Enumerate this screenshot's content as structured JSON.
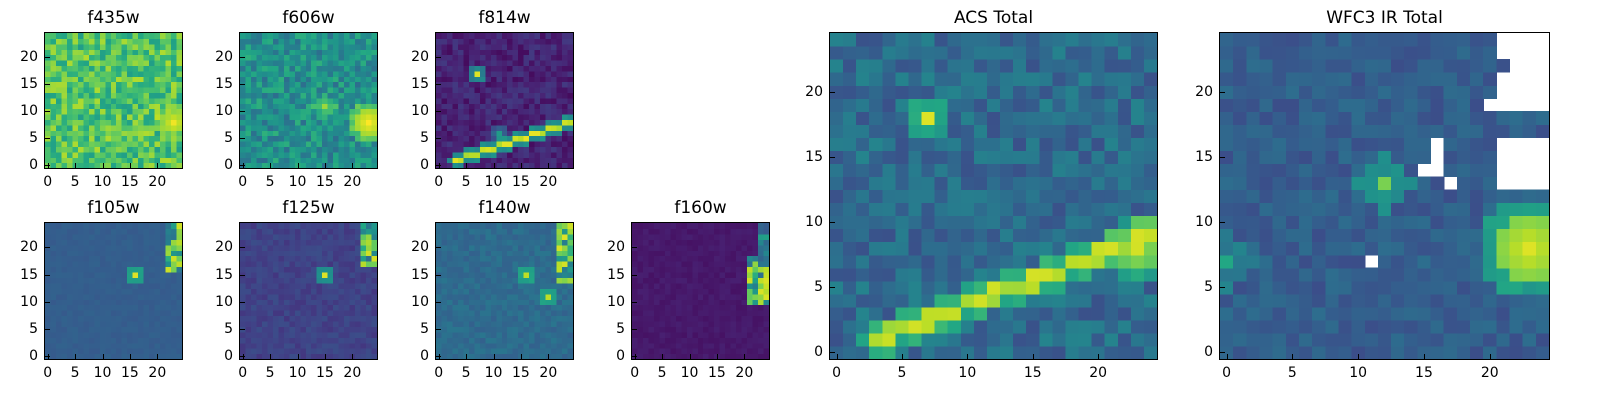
{
  "colors": {
    "colormap": "viridis",
    "background": "#ffffff",
    "frame": "#000000"
  },
  "chart_data": [
    {
      "type": "heatmap",
      "id": "f435w",
      "title": "f435w",
      "xlim": [
        0,
        24
      ],
      "ylim": [
        0,
        24
      ],
      "xticks": [
        0,
        5,
        10,
        15,
        20
      ],
      "yticks": [
        0,
        5,
        10,
        15,
        20
      ],
      "grid": false,
      "description_levels": "mostly bright green-yellow noise (0.6-0.95)",
      "base_level": 0.72,
      "noise": 0.16,
      "features": [
        {
          "type": "blob",
          "x": 23,
          "y": 8,
          "value": 0.98,
          "radius": 2
        }
      ]
    },
    {
      "type": "heatmap",
      "id": "f606w",
      "title": "f606w",
      "xlim": [
        0,
        24
      ],
      "ylim": [
        0,
        24
      ],
      "xticks": [
        0,
        5,
        10,
        15,
        20
      ],
      "yticks": [
        0,
        5,
        10,
        15,
        20
      ],
      "grid": false,
      "base_level": 0.5,
      "noise": 0.14,
      "features": [
        {
          "type": "blob",
          "x": 23,
          "y": 8,
          "value": 1.0,
          "radius": 2.5
        },
        {
          "type": "blob",
          "x": 15,
          "y": 11,
          "value": 0.85,
          "radius": 1
        }
      ]
    },
    {
      "type": "heatmap",
      "id": "f814w",
      "title": "f814w",
      "xlim": [
        0,
        24
      ],
      "ylim": [
        0,
        24
      ],
      "xticks": [
        0,
        5,
        10,
        15,
        20
      ],
      "yticks": [
        0,
        5,
        10,
        15,
        20
      ],
      "grid": false,
      "base_level": 0.1,
      "noise": 0.07,
      "features": [
        {
          "type": "streak",
          "x0": 3,
          "y0": 1,
          "x1": 24,
          "y1": 8,
          "value": 0.97
        },
        {
          "type": "blob",
          "x": 7,
          "y": 17,
          "value": 0.95,
          "radius": 0.7
        },
        {
          "type": "blob",
          "x": 11,
          "y": 6,
          "value": 0.55,
          "radius": 0.5
        }
      ]
    },
    {
      "type": "heatmap",
      "id": "f105w",
      "title": "f105w",
      "xlim": [
        0,
        24
      ],
      "ylim": [
        0,
        24
      ],
      "xticks": [
        0,
        5,
        10,
        15,
        20
      ],
      "yticks": [
        0,
        5,
        10,
        15,
        20
      ],
      "grid": false,
      "base_level": 0.3,
      "noise": 0.015,
      "features": [
        {
          "type": "edge-bright",
          "x": 22,
          "ymin": 16,
          "ymax": 24,
          "value": 0.95
        },
        {
          "type": "blob",
          "x": 16,
          "y": 15,
          "value": 0.95,
          "radius": 0.5
        },
        {
          "type": "blob",
          "x": 17,
          "y": 12,
          "value": 0.05,
          "radius": 0.5
        },
        {
          "type": "blob",
          "x": 20,
          "y": 12,
          "value": 0.05,
          "radius": 0.5
        }
      ]
    },
    {
      "type": "heatmap",
      "id": "f125w",
      "title": "f125w",
      "xlim": [
        0,
        24
      ],
      "ylim": [
        0,
        24
      ],
      "xticks": [
        0,
        5,
        10,
        15,
        20
      ],
      "yticks": [
        0,
        5,
        10,
        15,
        20
      ],
      "grid": false,
      "base_level": 0.2,
      "noise": 0.04,
      "features": [
        {
          "type": "edge-bright",
          "x": 22,
          "ymin": 17,
          "ymax": 24,
          "value": 0.95
        },
        {
          "type": "blob",
          "x": 15,
          "y": 15,
          "value": 0.95,
          "radius": 0.5
        },
        {
          "type": "blob",
          "x": 17,
          "y": 13,
          "value": 0.05,
          "radius": 0.5
        }
      ]
    },
    {
      "type": "heatmap",
      "id": "f140w",
      "title": "f140w",
      "xlim": [
        0,
        24
      ],
      "ylim": [
        0,
        24
      ],
      "xticks": [
        0,
        5,
        10,
        15,
        20
      ],
      "yticks": [
        0,
        5,
        10,
        15,
        20
      ],
      "grid": false,
      "base_level": 0.35,
      "noise": 0.04,
      "features": [
        {
          "type": "edge-bright",
          "x": 22,
          "ymin": 14,
          "ymax": 24,
          "value": 0.95
        },
        {
          "type": "blob",
          "x": 16,
          "y": 15,
          "value": 0.9,
          "radius": 0.5
        },
        {
          "type": "blob",
          "x": 20,
          "y": 11,
          "value": 0.9,
          "radius": 0.5
        },
        {
          "type": "blob",
          "x": 16,
          "y": 11,
          "value": 0.05,
          "radius": 0.5
        }
      ]
    },
    {
      "type": "heatmap",
      "id": "f160w",
      "title": "f160w",
      "xlim": [
        0,
        24
      ],
      "ylim": [
        0,
        24
      ],
      "xticks": [
        0,
        5,
        10,
        15,
        20
      ],
      "yticks": [
        0,
        5,
        10,
        15,
        20
      ],
      "grid": false,
      "base_level": 0.07,
      "noise": 0.02,
      "features": [
        {
          "type": "edge-bright",
          "x": 21,
          "ymin": 10,
          "ymax": 18,
          "value": 0.95
        },
        {
          "type": "edge-bright",
          "x": 23,
          "ymin": 18,
          "ymax": 24,
          "value": 0.45
        }
      ]
    },
    {
      "type": "heatmap",
      "id": "acs-total",
      "title": "ACS Total",
      "xlim": [
        0,
        24
      ],
      "ylim": [
        0,
        24
      ],
      "xticks": [
        0,
        5,
        10,
        15,
        20
      ],
      "yticks": [
        0,
        5,
        10,
        15,
        20
      ],
      "grid": false,
      "base_level": 0.35,
      "noise": 0.1,
      "features": [
        {
          "type": "streak",
          "x0": 3,
          "y0": 1,
          "x1": 24,
          "y1": 9,
          "value": 0.95
        },
        {
          "type": "blob",
          "x": 7,
          "y": 18,
          "value": 0.95,
          "radius": 0.7
        },
        {
          "type": "blob",
          "x": 23,
          "y": 8,
          "value": 0.9,
          "radius": 1.5
        }
      ]
    },
    {
      "type": "heatmap",
      "id": "wfc3-ir-total",
      "title": "WFC3 IR Total",
      "xlim": [
        0,
        24
      ],
      "ylim": [
        0,
        24
      ],
      "xticks": [
        0,
        5,
        10,
        15,
        20
      ],
      "yticks": [
        0,
        5,
        10,
        15,
        20
      ],
      "grid": false,
      "base_level": 0.3,
      "noise": 0.06,
      "features": [
        {
          "type": "blob",
          "x": 23,
          "y": 8,
          "value": 0.95,
          "radius": 2.5
        },
        {
          "type": "blob",
          "x": 12,
          "y": 13,
          "value": 0.8,
          "radius": 0.8
        },
        {
          "type": "blob",
          "x": 0,
          "y": 7,
          "value": 0.6,
          "radius": 0.8
        },
        {
          "type": "missing",
          "cells": [
            [
              21,
              24
            ],
            [
              22,
              24
            ],
            [
              23,
              24
            ],
            [
              24,
              24
            ],
            [
              21,
              23
            ],
            [
              22,
              23
            ],
            [
              23,
              23
            ],
            [
              24,
              23
            ],
            [
              22,
              22
            ],
            [
              23,
              22
            ],
            [
              24,
              22
            ],
            [
              21,
              21
            ],
            [
              22,
              21
            ],
            [
              23,
              21
            ],
            [
              24,
              21
            ],
            [
              21,
              20
            ],
            [
              22,
              20
            ],
            [
              23,
              20
            ],
            [
              24,
              20
            ],
            [
              20,
              19
            ],
            [
              21,
              19
            ],
            [
              22,
              19
            ],
            [
              23,
              19
            ],
            [
              24,
              19
            ],
            [
              16,
              16
            ],
            [
              21,
              16
            ],
            [
              22,
              16
            ],
            [
              23,
              16
            ],
            [
              24,
              16
            ],
            [
              16,
              15
            ],
            [
              21,
              15
            ],
            [
              22,
              15
            ],
            [
              23,
              15
            ],
            [
              24,
              15
            ],
            [
              16,
              14
            ],
            [
              21,
              14
            ],
            [
              22,
              14
            ],
            [
              23,
              14
            ],
            [
              24,
              14
            ],
            [
              15,
              14
            ],
            [
              17,
              13
            ],
            [
              21,
              13
            ],
            [
              22,
              13
            ],
            [
              23,
              13
            ],
            [
              24,
              13
            ],
            [
              11,
              7
            ]
          ]
        }
      ]
    }
  ]
}
